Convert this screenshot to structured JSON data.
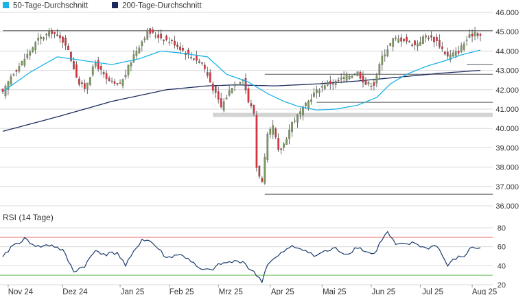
{
  "colors": {
    "ma50": "#1ab2e6",
    "ma200": "#1b2a5e",
    "candle_up": "#7a9a5a",
    "candle_down": "#d8323c",
    "wick": "#444444",
    "rsi_line": "#1b3a6e",
    "rsi_upper": "#e06060",
    "rsi_lower": "#66bb55",
    "grid": "#d8d8d8",
    "level_band": "#d3d3d3"
  },
  "chart_data": [
    {
      "type": "candlestick",
      "title": "",
      "legend": [
        {
          "name": "50-Tage-Durchschnitt",
          "color": "#1ab2e6"
        },
        {
          "name": "200-Tage-Durchschnitt",
          "color": "#1b2a5e"
        }
      ],
      "legend_position": "top-left",
      "ylim": [
        36.0,
        46.0
      ],
      "y_ticks": [
        "46.000",
        "45.000",
        "44.000",
        "43.000",
        "42.000",
        "41.000",
        "40.000",
        "39.000",
        "38.000",
        "37.000",
        "36.000"
      ],
      "x_ticks": [
        "Nov 24",
        "Dez 24",
        "Jan 25",
        "Feb 25",
        "Mrz 25",
        "Apr 25",
        "Mai 25",
        "Jun 25",
        "Jul 25",
        "Aug 25"
      ],
      "grid": true,
      "horizontal_levels": [
        {
          "value": 45.05,
          "style": "line",
          "from_month": "Nov 24"
        },
        {
          "value": 43.3,
          "style": "line",
          "from_month": "Aug 25"
        },
        {
          "value": 42.8,
          "style": "line",
          "from_month": "Apr 25"
        },
        {
          "value": 41.35,
          "style": "line",
          "from_month": "Mai 25"
        },
        {
          "value": 40.7,
          "style": "band",
          "from_month": "Mrz 25"
        },
        {
          "value": 36.6,
          "style": "line",
          "from_month": "Apr 25"
        }
      ],
      "close_anchors": [
        [
          0,
          41.8
        ],
        [
          3,
          42.7
        ],
        [
          8,
          43.6
        ],
        [
          13,
          44.6
        ],
        [
          18,
          45.0
        ],
        [
          23,
          44.4
        ],
        [
          28,
          42.3
        ],
        [
          30,
          42.1
        ],
        [
          34,
          43.4
        ],
        [
          38,
          42.5
        ],
        [
          42,
          42.2
        ],
        [
          44,
          42.5
        ],
        [
          48,
          43.8
        ],
        [
          53,
          45.0
        ],
        [
          58,
          44.7
        ],
        [
          63,
          44.4
        ],
        [
          68,
          43.8
        ],
        [
          73,
          43.4
        ],
        [
          76,
          42.4
        ],
        [
          80,
          41.1
        ],
        [
          84,
          42.2
        ],
        [
          88,
          42.6
        ],
        [
          90,
          41.4
        ],
        [
          92,
          40.8
        ],
        [
          93,
          38.0
        ],
        [
          95,
          37.2
        ],
        [
          97,
          39.6
        ],
        [
          99,
          40.1
        ],
        [
          101,
          38.8
        ],
        [
          103,
          39.2
        ],
        [
          106,
          40.3
        ],
        [
          110,
          41.0
        ],
        [
          114,
          41.8
        ],
        [
          118,
          42.3
        ],
        [
          122,
          42.4
        ],
        [
          126,
          42.7
        ],
        [
          130,
          42.9
        ],
        [
          133,
          42.3
        ],
        [
          136,
          42.3
        ],
        [
          139,
          43.7
        ],
        [
          143,
          44.6
        ],
        [
          147,
          44.6
        ],
        [
          151,
          44.3
        ],
        [
          155,
          44.8
        ],
        [
          159,
          44.5
        ],
        [
          163,
          43.7
        ],
        [
          167,
          44.0
        ],
        [
          170,
          44.6
        ],
        [
          173,
          45.0
        ],
        [
          175,
          44.8
        ]
      ],
      "ma50_anchors": [
        [
          0,
          41.9
        ],
        [
          10,
          42.9
        ],
        [
          20,
          43.7
        ],
        [
          30,
          43.5
        ],
        [
          40,
          43.3
        ],
        [
          50,
          43.6
        ],
        [
          58,
          44.0
        ],
        [
          65,
          43.9
        ],
        [
          75,
          43.7
        ],
        [
          82,
          42.8
        ],
        [
          90,
          42.4
        ],
        [
          97,
          41.8
        ],
        [
          103,
          41.4
        ],
        [
          108,
          41.15
        ],
        [
          115,
          40.95
        ],
        [
          122,
          41.0
        ],
        [
          130,
          41.2
        ],
        [
          137,
          41.6
        ],
        [
          142,
          42.3
        ],
        [
          148,
          42.8
        ],
        [
          155,
          43.2
        ],
        [
          162,
          43.5
        ],
        [
          168,
          43.8
        ],
        [
          175,
          44.05
        ]
      ],
      "ma200_anchors": [
        [
          0,
          39.85
        ],
        [
          20,
          40.6
        ],
        [
          40,
          41.4
        ],
        [
          60,
          42.0
        ],
        [
          75,
          42.2
        ],
        [
          85,
          42.25
        ],
        [
          100,
          42.2
        ],
        [
          115,
          42.3
        ],
        [
          130,
          42.45
        ],
        [
          145,
          42.65
        ],
        [
          160,
          42.85
        ],
        [
          175,
          43.0
        ]
      ]
    },
    {
      "type": "line",
      "title": "RSI (14 Tage)",
      "series": [
        {
          "name": "RSI (14 Tage)",
          "anchors": [
            [
              0,
              48
            ],
            [
              3,
              60
            ],
            [
              8,
              68
            ],
            [
              13,
              60
            ],
            [
              18,
              62
            ],
            [
              22,
              56
            ],
            [
              26,
              34
            ],
            [
              30,
              40
            ],
            [
              34,
              56
            ],
            [
              38,
              52
            ],
            [
              42,
              54
            ],
            [
              45,
              40
            ],
            [
              48,
              54
            ],
            [
              51,
              68
            ],
            [
              54,
              66
            ],
            [
              57,
              58
            ],
            [
              60,
              48
            ],
            [
              64,
              52
            ],
            [
              68,
              48
            ],
            [
              72,
              36
            ],
            [
              76,
              35
            ],
            [
              80,
              42
            ],
            [
              84,
              44
            ],
            [
              88,
              45
            ],
            [
              90,
              38
            ],
            [
              93,
              30
            ],
            [
              95,
              24
            ],
            [
              97,
              42
            ],
            [
              100,
              48
            ],
            [
              103,
              55
            ],
            [
              106,
              60
            ],
            [
              110,
              58
            ],
            [
              114,
              50
            ],
            [
              118,
              55
            ],
            [
              122,
              58
            ],
            [
              126,
              52
            ],
            [
              130,
              60
            ],
            [
              133,
              55
            ],
            [
              136,
              52
            ],
            [
              139,
              68
            ],
            [
              141,
              75
            ],
            [
              144,
              62
            ],
            [
              147,
              62
            ],
            [
              151,
              64
            ],
            [
              155,
              58
            ],
            [
              159,
              62
            ],
            [
              163,
              40
            ],
            [
              166,
              48
            ],
            [
              169,
              50
            ],
            [
              172,
              60
            ],
            [
              175,
              58
            ]
          ]
        }
      ],
      "ylim": [
        20,
        80
      ],
      "y_ticks": [
        "80",
        "60",
        "40",
        "20"
      ],
      "reference_lines": [
        70,
        30
      ],
      "x_ticks": [
        "Nov 24",
        "Dez 24",
        "Jan 25",
        "Feb 25",
        "Mrz 25",
        "Apr 25",
        "Mai 25",
        "Jun 25",
        "Jul 25",
        "Aug 25"
      ]
    }
  ]
}
